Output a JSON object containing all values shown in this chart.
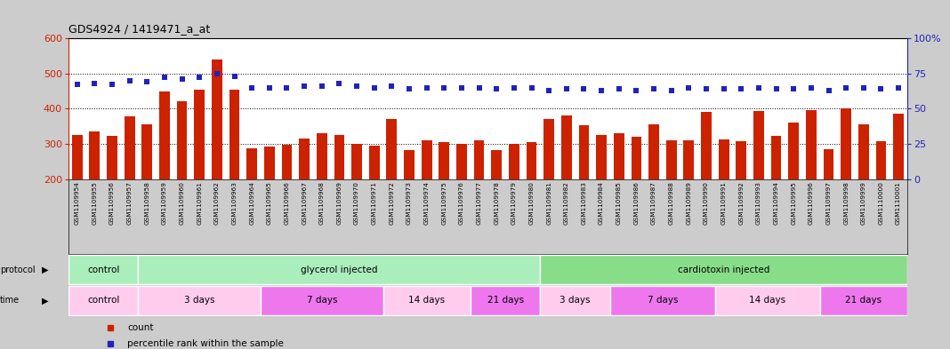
{
  "title": "GDS4924 / 1419471_a_at",
  "samples": [
    "GSM1109954",
    "GSM1109955",
    "GSM1109956",
    "GSM1109957",
    "GSM1109958",
    "GSM1109959",
    "GSM1109960",
    "GSM1109961",
    "GSM1109962",
    "GSM1109963",
    "GSM1109964",
    "GSM1109965",
    "GSM1109966",
    "GSM1109967",
    "GSM1109968",
    "GSM1109969",
    "GSM1109970",
    "GSM1109971",
    "GSM1109972",
    "GSM1109973",
    "GSM1109974",
    "GSM1109975",
    "GSM1109976",
    "GSM1109977",
    "GSM1109978",
    "GSM1109979",
    "GSM1109980",
    "GSM1109981",
    "GSM1109982",
    "GSM1109983",
    "GSM1109984",
    "GSM1109985",
    "GSM1109986",
    "GSM1109987",
    "GSM1109988",
    "GSM1109989",
    "GSM1109990",
    "GSM1109991",
    "GSM1109992",
    "GSM1109993",
    "GSM1109994",
    "GSM1109995",
    "GSM1109996",
    "GSM1109997",
    "GSM1109998",
    "GSM1109999",
    "GSM1110000",
    "GSM1110001"
  ],
  "counts": [
    325,
    335,
    322,
    378,
    355,
    448,
    420,
    455,
    540,
    455,
    287,
    293,
    299,
    315,
    330,
    326,
    300,
    295,
    370,
    283,
    310,
    305,
    300,
    310,
    283,
    300,
    305,
    372,
    382,
    354,
    325,
    330,
    320,
    355,
    311,
    310,
    392,
    312,
    308,
    393,
    322,
    360,
    395,
    285,
    400,
    355,
    308,
    385
  ],
  "percentiles": [
    67,
    68,
    67,
    70,
    69,
    72,
    71,
    72,
    75,
    73,
    65,
    65,
    65,
    66,
    66,
    68,
    66,
    65,
    66,
    64,
    65,
    65,
    65,
    65,
    64,
    65,
    65,
    63,
    64,
    64,
    63,
    64,
    63,
    64,
    63,
    65,
    64,
    64,
    64,
    65,
    64,
    64,
    65,
    63,
    65,
    65,
    64,
    65
  ],
  "bar_color": "#cc2200",
  "dot_color": "#2222bb",
  "ylim_left": [
    200,
    600
  ],
  "ylim_right": [
    0,
    100
  ],
  "yticks_left": [
    200,
    300,
    400,
    500,
    600
  ],
  "yticks_right": [
    0,
    25,
    50,
    75,
    100
  ],
  "grid_lines": [
    300,
    400,
    500
  ],
  "background_color": "#cccccc",
  "plot_bg": "#ffffff",
  "xtick_bg": "#cccccc",
  "protocol_groups": [
    {
      "label": "control",
      "start": 0,
      "end": 4,
      "color": "#aaeebb"
    },
    {
      "label": "glycerol injected",
      "start": 4,
      "end": 27,
      "color": "#aaeebb"
    },
    {
      "label": "cardiotoxin injected",
      "start": 27,
      "end": 48,
      "color": "#88dd88"
    }
  ],
  "time_groups": [
    {
      "label": "control",
      "start": 0,
      "end": 4,
      "color": "#ffccee"
    },
    {
      "label": "3 days",
      "start": 4,
      "end": 11,
      "color": "#ffccee"
    },
    {
      "label": "7 days",
      "start": 11,
      "end": 18,
      "color": "#ee77ee"
    },
    {
      "label": "14 days",
      "start": 18,
      "end": 23,
      "color": "#ffccee"
    },
    {
      "label": "21 days",
      "start": 23,
      "end": 27,
      "color": "#ee77ee"
    },
    {
      "label": "3 days",
      "start": 27,
      "end": 31,
      "color": "#ffccee"
    },
    {
      "label": "7 days",
      "start": 31,
      "end": 37,
      "color": "#ee77ee"
    },
    {
      "label": "14 days",
      "start": 37,
      "end": 43,
      "color": "#ffccee"
    },
    {
      "label": "21 days",
      "start": 43,
      "end": 48,
      "color": "#ee77ee"
    }
  ]
}
